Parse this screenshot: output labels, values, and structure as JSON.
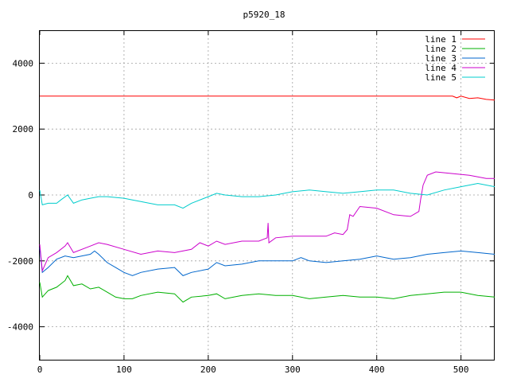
{
  "chart_data": {
    "type": "line",
    "title": "p5920_18",
    "xlabel": "",
    "ylabel": "",
    "xlim": [
      0,
      540
    ],
    "ylim": [
      -5000,
      5000
    ],
    "x_ticks": [
      0,
      100,
      200,
      300,
      400,
      500
    ],
    "y_ticks": [
      -4000,
      -2000,
      0,
      2000,
      4000
    ],
    "x_tick_labels": [
      "0",
      "100",
      "200",
      "300",
      "400",
      "500"
    ],
    "y_tick_labels": [
      "-4000",
      "-2000",
      "0",
      "2000",
      "4000"
    ],
    "grid": true,
    "legend_position": "top-right",
    "series": [
      {
        "name": "line 1",
        "color": "#ff0000",
        "points": [
          [
            0,
            3000
          ],
          [
            490,
            3000
          ],
          [
            495,
            2950
          ],
          [
            500,
            3000
          ],
          [
            510,
            2930
          ],
          [
            520,
            2950
          ],
          [
            530,
            2900
          ],
          [
            540,
            2880
          ]
        ]
      },
      {
        "name": "line 2",
        "color": "#00b000",
        "points": [
          [
            0,
            -2650
          ],
          [
            3,
            -3100
          ],
          [
            10,
            -2900
          ],
          [
            20,
            -2800
          ],
          [
            30,
            -2600
          ],
          [
            33,
            -2450
          ],
          [
            40,
            -2750
          ],
          [
            50,
            -2700
          ],
          [
            60,
            -2850
          ],
          [
            70,
            -2800
          ],
          [
            80,
            -2950
          ],
          [
            90,
            -3100
          ],
          [
            100,
            -3150
          ],
          [
            110,
            -3150
          ],
          [
            120,
            -3050
          ],
          [
            140,
            -2950
          ],
          [
            160,
            -3000
          ],
          [
            170,
            -3250
          ],
          [
            180,
            -3100
          ],
          [
            200,
            -3050
          ],
          [
            210,
            -3000
          ],
          [
            220,
            -3150
          ],
          [
            240,
            -3050
          ],
          [
            260,
            -3000
          ],
          [
            280,
            -3050
          ],
          [
            300,
            -3050
          ],
          [
            320,
            -3150
          ],
          [
            340,
            -3100
          ],
          [
            360,
            -3050
          ],
          [
            380,
            -3100
          ],
          [
            400,
            -3100
          ],
          [
            420,
            -3150
          ],
          [
            440,
            -3050
          ],
          [
            460,
            -3000
          ],
          [
            480,
            -2950
          ],
          [
            500,
            -2950
          ],
          [
            520,
            -3050
          ],
          [
            540,
            -3100
          ]
        ]
      },
      {
        "name": "line 3",
        "color": "#0066cc",
        "points": [
          [
            0,
            -1600
          ],
          [
            3,
            -2350
          ],
          [
            10,
            -2200
          ],
          [
            20,
            -1950
          ],
          [
            30,
            -1850
          ],
          [
            40,
            -1900
          ],
          [
            50,
            -1850
          ],
          [
            60,
            -1800
          ],
          [
            65,
            -1700
          ],
          [
            70,
            -1800
          ],
          [
            80,
            -2050
          ],
          [
            90,
            -2200
          ],
          [
            100,
            -2350
          ],
          [
            110,
            -2450
          ],
          [
            120,
            -2350
          ],
          [
            140,
            -2250
          ],
          [
            160,
            -2200
          ],
          [
            170,
            -2450
          ],
          [
            180,
            -2350
          ],
          [
            200,
            -2250
          ],
          [
            210,
            -2050
          ],
          [
            220,
            -2150
          ],
          [
            240,
            -2100
          ],
          [
            260,
            -2000
          ],
          [
            280,
            -2000
          ],
          [
            300,
            -2000
          ],
          [
            310,
            -1900
          ],
          [
            320,
            -2000
          ],
          [
            340,
            -2050
          ],
          [
            360,
            -2000
          ],
          [
            380,
            -1950
          ],
          [
            400,
            -1850
          ],
          [
            420,
            -1950
          ],
          [
            440,
            -1900
          ],
          [
            460,
            -1800
          ],
          [
            480,
            -1750
          ],
          [
            500,
            -1700
          ],
          [
            520,
            -1750
          ],
          [
            540,
            -1800
          ]
        ]
      },
      {
        "name": "line 4",
        "color": "#cc00cc",
        "points": [
          [
            0,
            -1500
          ],
          [
            3,
            -2300
          ],
          [
            10,
            -1900
          ],
          [
            20,
            -1750
          ],
          [
            30,
            -1550
          ],
          [
            33,
            -1450
          ],
          [
            40,
            -1750
          ],
          [
            60,
            -1550
          ],
          [
            70,
            -1450
          ],
          [
            80,
            -1500
          ],
          [
            100,
            -1650
          ],
          [
            120,
            -1800
          ],
          [
            140,
            -1700
          ],
          [
            160,
            -1750
          ],
          [
            180,
            -1650
          ],
          [
            190,
            -1450
          ],
          [
            200,
            -1550
          ],
          [
            210,
            -1400
          ],
          [
            220,
            -1500
          ],
          [
            240,
            -1400
          ],
          [
            260,
            -1400
          ],
          [
            270,
            -1300
          ],
          [
            271,
            -850
          ],
          [
            272,
            -1450
          ],
          [
            280,
            -1300
          ],
          [
            300,
            -1250
          ],
          [
            320,
            -1250
          ],
          [
            340,
            -1250
          ],
          [
            350,
            -1150
          ],
          [
            360,
            -1200
          ],
          [
            365,
            -1050
          ],
          [
            368,
            -600
          ],
          [
            372,
            -650
          ],
          [
            380,
            -350
          ],
          [
            400,
            -400
          ],
          [
            420,
            -600
          ],
          [
            440,
            -650
          ],
          [
            450,
            -500
          ],
          [
            452,
            -150
          ],
          [
            455,
            300
          ],
          [
            460,
            600
          ],
          [
            470,
            700
          ],
          [
            490,
            650
          ],
          [
            510,
            600
          ],
          [
            530,
            500
          ],
          [
            540,
            500
          ]
        ]
      },
      {
        "name": "line 5",
        "color": "#00cccc",
        "points": [
          [
            0,
            150
          ],
          [
            3,
            -300
          ],
          [
            10,
            -250
          ],
          [
            20,
            -250
          ],
          [
            25,
            -150
          ],
          [
            33,
            0
          ],
          [
            40,
            -250
          ],
          [
            50,
            -150
          ],
          [
            60,
            -100
          ],
          [
            70,
            -50
          ],
          [
            80,
            -50
          ],
          [
            100,
            -100
          ],
          [
            110,
            -150
          ],
          [
            120,
            -200
          ],
          [
            140,
            -300
          ],
          [
            160,
            -300
          ],
          [
            170,
            -400
          ],
          [
            180,
            -250
          ],
          [
            200,
            -50
          ],
          [
            210,
            50
          ],
          [
            220,
            0
          ],
          [
            240,
            -50
          ],
          [
            260,
            -50
          ],
          [
            280,
            0
          ],
          [
            300,
            100
          ],
          [
            320,
            150
          ],
          [
            340,
            100
          ],
          [
            360,
            50
          ],
          [
            380,
            100
          ],
          [
            400,
            150
          ],
          [
            420,
            150
          ],
          [
            440,
            50
          ],
          [
            460,
            0
          ],
          [
            480,
            150
          ],
          [
            500,
            250
          ],
          [
            520,
            350
          ],
          [
            540,
            250
          ]
        ]
      }
    ]
  }
}
